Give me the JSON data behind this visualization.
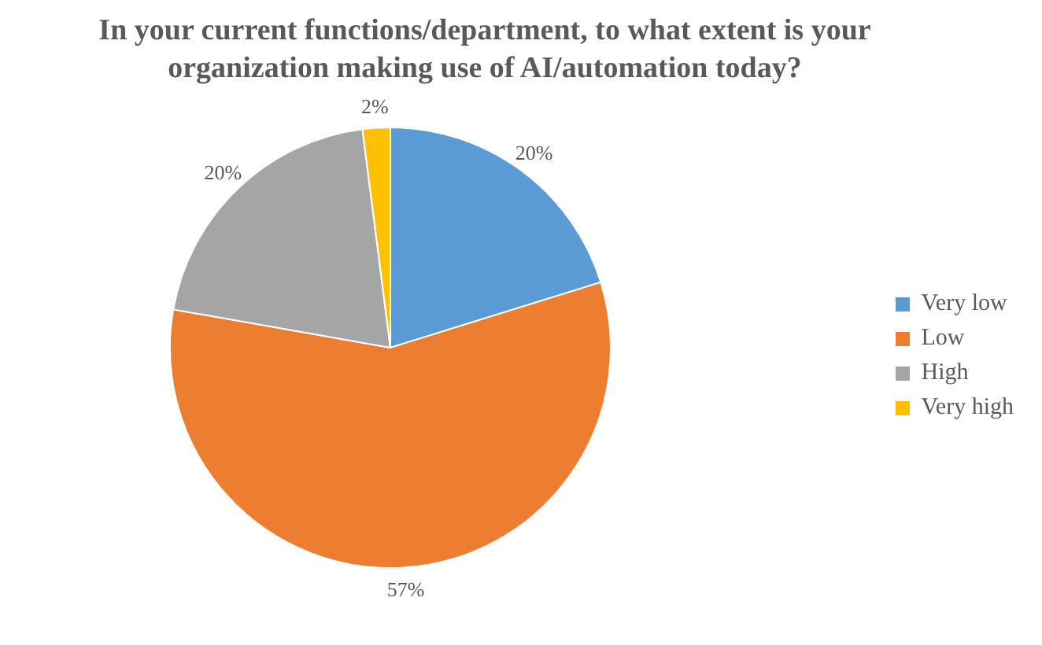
{
  "chart_data": {
    "type": "pie",
    "title": "In your current functions/department, to what extent is your organization making use of AI/automation today?",
    "categories": [
      "Very low",
      "Low",
      "High",
      "Very high"
    ],
    "values": [
      20,
      57,
      20,
      2
    ],
    "colors": [
      "#5b9bd5",
      "#ed7d31",
      "#a5a5a5",
      "#ffc000"
    ],
    "value_labels": [
      "20%",
      "57%",
      "20%",
      "2%"
    ],
    "legend": "right"
  }
}
